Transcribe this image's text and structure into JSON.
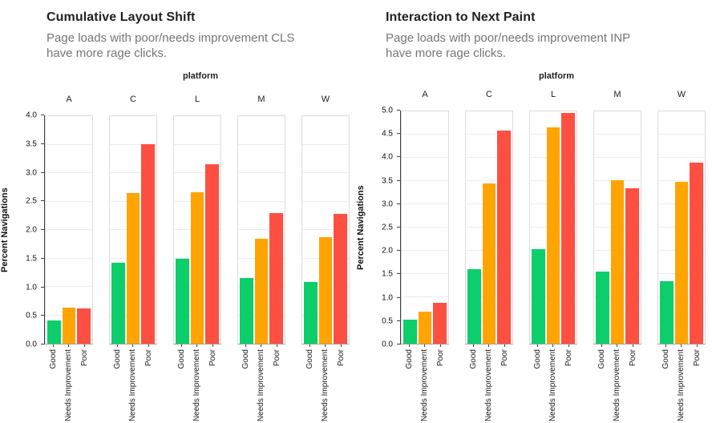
{
  "palette": {
    "good": "#0CCE6B",
    "needs_improvement": "#FFA400",
    "poor": "#FF4E42",
    "gridline": "#ececec",
    "panel_border": "#dcdcdc",
    "axis": "#3d3d3d",
    "title_text": "#212121",
    "subtitle_text": "#757575"
  },
  "chart_data": [
    {
      "type": "bar",
      "title": "Cumulative Layout Shift",
      "subtitle": "Page loads with poor/needs improvement CLS have more rage clicks.",
      "subtitle_lines": [
        "Page loads with poor/needs improvement CLS",
        "have more rage clicks."
      ],
      "facet_title": "platform",
      "facets": [
        "A",
        "C",
        "L",
        "M",
        "W"
      ],
      "categories": [
        "Good",
        "Needs Improvement",
        "Poor"
      ],
      "series": [
        {
          "name": "A",
          "values": [
            0.41,
            0.63,
            0.62
          ]
        },
        {
          "name": "C",
          "values": [
            1.42,
            2.65,
            3.51
          ]
        },
        {
          "name": "L",
          "values": [
            1.49,
            2.66,
            3.16
          ]
        },
        {
          "name": "M",
          "values": [
            1.16,
            1.84,
            2.29
          ]
        },
        {
          "name": "W",
          "values": [
            1.08,
            1.88,
            2.28
          ]
        }
      ],
      "xlabel": "",
      "ylabel": "Percent Navigations",
      "ylim": [
        0,
        4.0
      ],
      "ystep": 0.5,
      "bar_colors": [
        "#0CCE6B",
        "#FFA400",
        "#FF4E42"
      ],
      "grid": true,
      "legend": "none"
    },
    {
      "type": "bar",
      "title": "Interaction to Next Paint",
      "subtitle": "Page loads with poor/needs improvement INP have more rage clicks.",
      "subtitle_lines": [
        "Page loads with poor/needs improvement INP",
        "have more rage clicks."
      ],
      "facet_title": "platform",
      "facets": [
        "A",
        "C",
        "L",
        "M",
        "W"
      ],
      "categories": [
        "Good",
        "Needs Improvement",
        "Poor"
      ],
      "series": [
        {
          "name": "A",
          "values": [
            0.52,
            0.69,
            0.88
          ]
        },
        {
          "name": "C",
          "values": [
            1.6,
            3.45,
            4.58
          ]
        },
        {
          "name": "L",
          "values": [
            2.04,
            4.65,
            4.96
          ]
        },
        {
          "name": "M",
          "values": [
            1.56,
            3.51,
            3.35
          ]
        },
        {
          "name": "W",
          "values": [
            1.34,
            3.48,
            3.9
          ]
        }
      ],
      "xlabel": "",
      "ylabel": "Percent Navigations",
      "ylim": [
        0,
        5.0
      ],
      "ystep": 0.5,
      "bar_colors": [
        "#0CCE6B",
        "#FFA400",
        "#FF4E42"
      ],
      "grid": true,
      "legend": "none"
    }
  ]
}
